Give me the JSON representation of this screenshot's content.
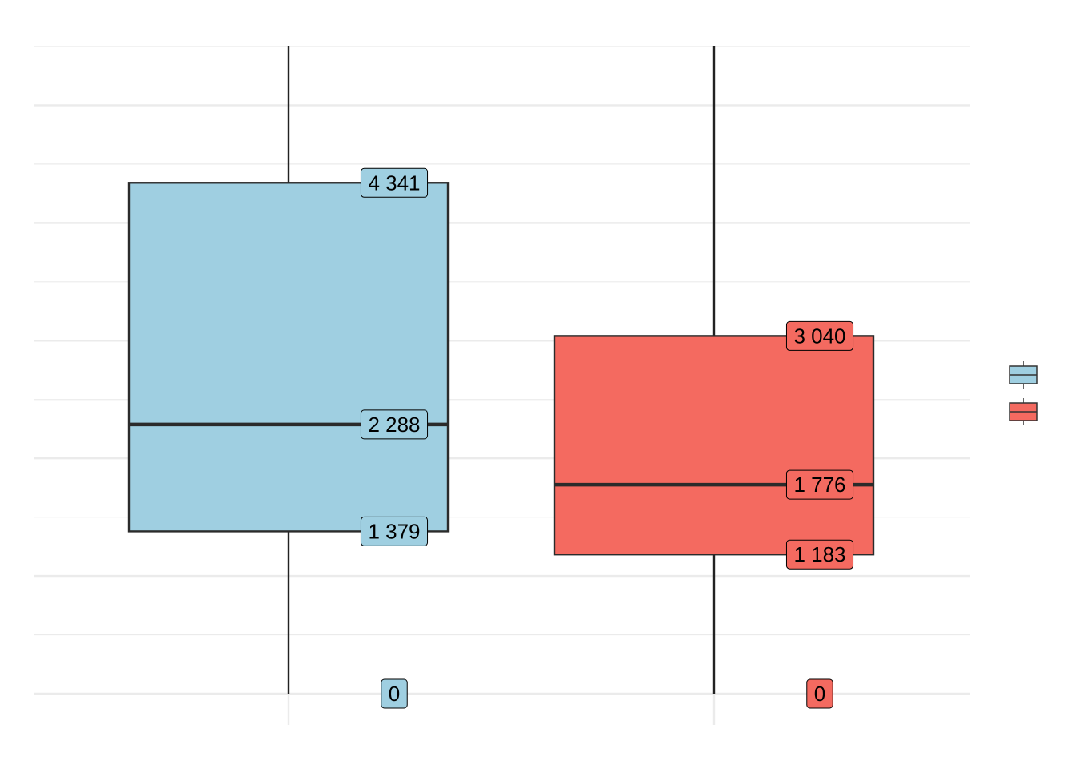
{
  "chart_data": {
    "type": "boxplot",
    "title": "",
    "xlabel": "",
    "ylabel": "",
    "ylim": [
      0,
      5500
    ],
    "grid": {
      "major_y": true,
      "minor_y": true,
      "major_x": true
    },
    "legend_position": "right",
    "series": [
      {
        "color": "#9FCFE1",
        "whisker_low": 0,
        "q1": 1379,
        "median": 2288,
        "q3": 4341,
        "whisker_high": 5500,
        "labels": {
          "q3": "4 341",
          "median": "2 288",
          "q1": "1 379",
          "min": "0"
        }
      },
      {
        "color": "#F46A60",
        "whisker_low": 0,
        "q1": 1183,
        "median": 1776,
        "q3": 3040,
        "whisker_high": 5500,
        "labels": {
          "q3": "3 040",
          "median": "1 776",
          "q1": "1 183",
          "min": "0"
        }
      }
    ]
  }
}
